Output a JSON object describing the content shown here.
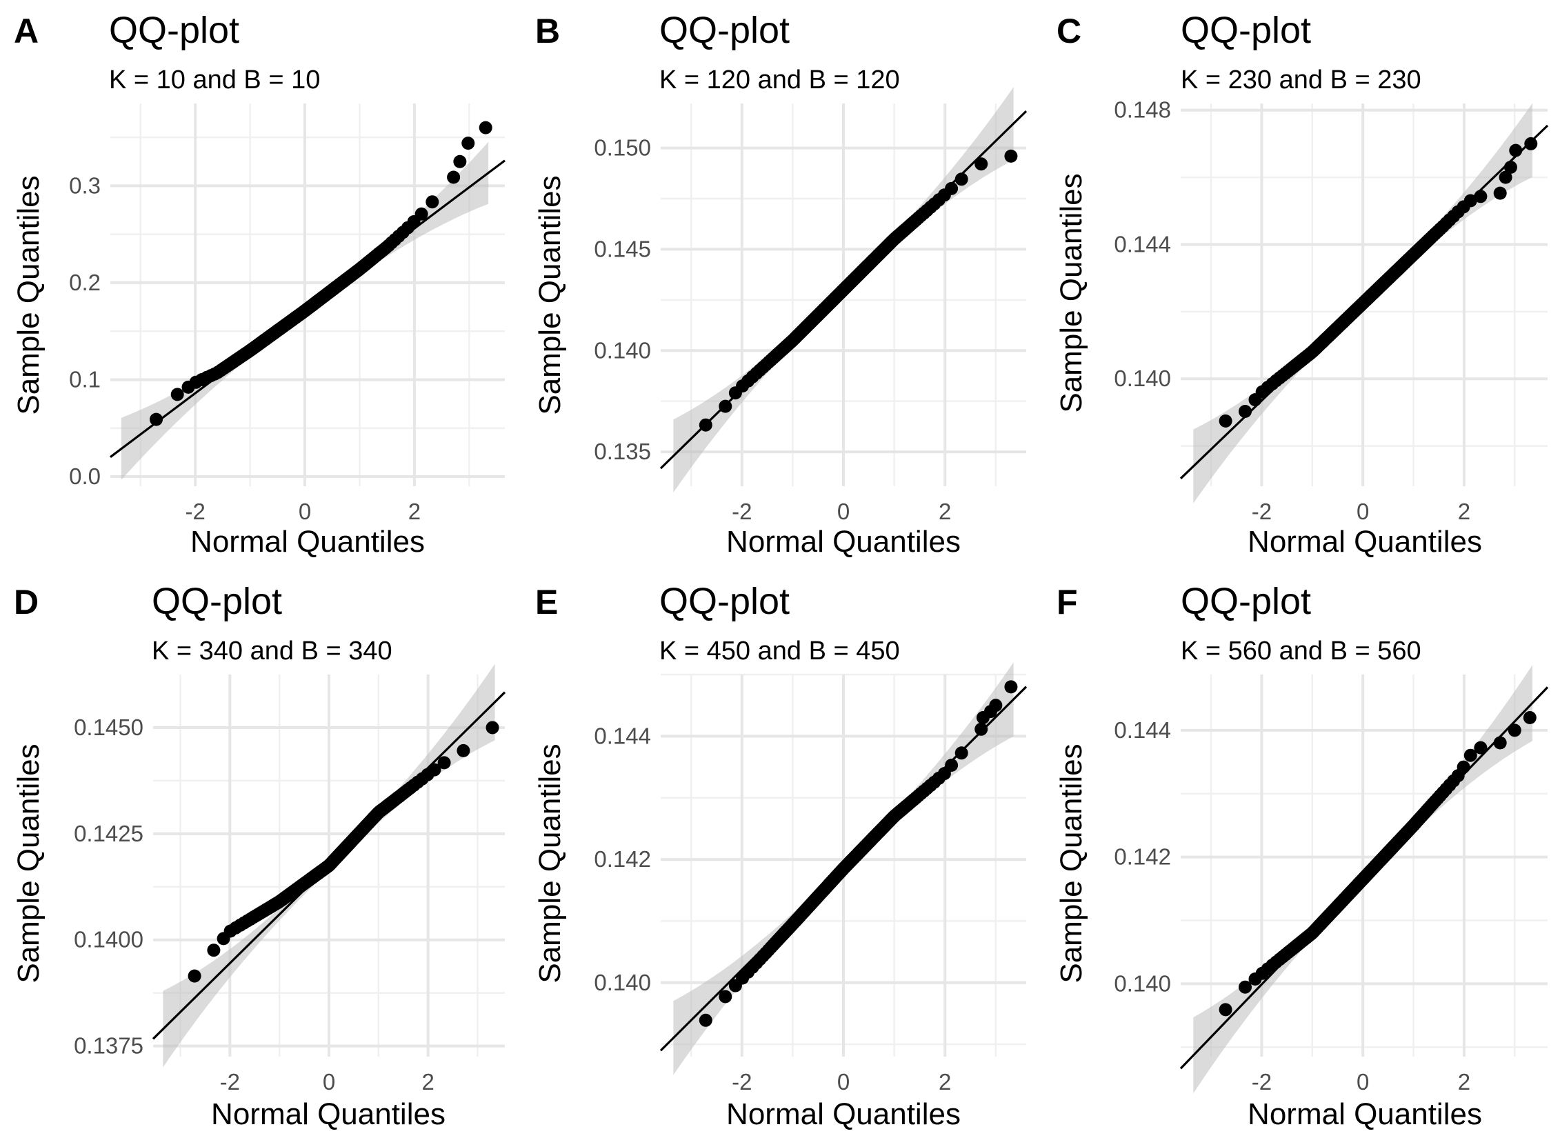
{
  "figure": {
    "panels": [
      {
        "letter": "A",
        "title": "QQ-plot",
        "subtitle": "K = 10 and B = 10"
      },
      {
        "letter": "B",
        "title": "QQ-plot",
        "subtitle": "K = 120 and B = 120"
      },
      {
        "letter": "C",
        "title": "QQ-plot",
        "subtitle": "K = 230 and B = 230"
      },
      {
        "letter": "D",
        "title": "QQ-plot",
        "subtitle": "K = 340 and B = 340"
      },
      {
        "letter": "E",
        "title": "QQ-plot",
        "subtitle": "K = 450 and B = 450"
      },
      {
        "letter": "F",
        "title": "QQ-plot",
        "subtitle": "K = 560 and B = 560"
      }
    ]
  },
  "chart_data": [
    {
      "type": "scatter",
      "panel": "A",
      "title": "QQ-plot",
      "subtitle": "K = 10 and B = 10",
      "xlabel": "Normal Quantiles",
      "ylabel": "Sample Quantiles",
      "xlim": [
        -3.55,
        3.65
      ],
      "ylim": [
        -0.01,
        0.385
      ],
      "xticks": [
        -2,
        0,
        2
      ],
      "xtick_labels": [
        "-2",
        "0",
        "2"
      ],
      "yticks": [
        0.0,
        0.1,
        0.2,
        0.3
      ],
      "ytick_labels": [
        "0.0",
        "0.1",
        "0.2",
        "0.3"
      ],
      "ref_line": {
        "intercept": 0.171,
        "slope": 0.0425
      },
      "band_width": {
        "center": 0.0035,
        "tail": 0.032
      },
      "knots": [
        [
          -3.3,
          0.038
        ],
        [
          -2.9,
          0.044
        ],
        [
          -2.6,
          0.068
        ],
        [
          -2.4,
          0.082
        ],
        [
          -2.0,
          0.097
        ],
        [
          -1.6,
          0.107
        ],
        [
          -1.0,
          0.13
        ],
        [
          0.0,
          0.171
        ],
        [
          1.0,
          0.214
        ],
        [
          1.5,
          0.237
        ],
        [
          1.85,
          0.255
        ],
        [
          2.2,
          0.275
        ],
        [
          2.5,
          0.295
        ],
        [
          2.7,
          0.308
        ]
      ],
      "outliers": [
        [
          2.83,
          0.325
        ],
        [
          2.98,
          0.344
        ],
        [
          3.3,
          0.36
        ]
      ],
      "n_points": 150
    },
    {
      "type": "scatter",
      "panel": "B",
      "title": "QQ-plot",
      "subtitle": "K = 120 and B = 120",
      "xlabel": "Normal Quantiles",
      "ylabel": "Sample Quantiles",
      "xlim": [
        -3.6,
        3.6
      ],
      "ylim": [
        0.1333,
        0.1522
      ],
      "xticks": [
        -2,
        0,
        2
      ],
      "xtick_labels": [
        "-2",
        "0",
        "2"
      ],
      "yticks": [
        0.135,
        0.14,
        0.145,
        0.15
      ],
      "ytick_labels": [
        "0.135",
        "0.140",
        "0.145",
        "0.150"
      ],
      "ref_line": {
        "intercept": 0.143,
        "slope": 0.00245
      },
      "band_width": {
        "center": 0.0002,
        "tail": 0.0018
      },
      "knots": [
        [
          -3.3,
          0.1342
        ],
        [
          -3.05,
          0.1361
        ],
        [
          -2.6,
          0.1364
        ],
        [
          -2.4,
          0.137
        ],
        [
          -2.1,
          0.138
        ],
        [
          -1.0,
          0.1405
        ],
        [
          0.0,
          0.143
        ],
        [
          1.0,
          0.1455
        ],
        [
          2.0,
          0.1477
        ],
        [
          2.6,
          0.1491
        ],
        [
          3.0,
          0.1495
        ]
      ],
      "outliers": [
        [
          3.3,
          0.1496
        ]
      ],
      "n_points": 150
    },
    {
      "type": "scatter",
      "panel": "C",
      "title": "QQ-plot",
      "subtitle": "K = 230 and B = 230",
      "xlabel": "Normal Quantiles",
      "ylabel": "Sample Quantiles",
      "xlim": [
        -3.6,
        3.65
      ],
      "ylim": [
        0.1368,
        0.1482
      ],
      "xticks": [
        -2,
        0,
        2
      ],
      "xtick_labels": [
        "-2",
        "0",
        "2"
      ],
      "yticks": [
        0.14,
        0.144,
        0.148
      ],
      "ytick_labels": [
        "0.140",
        "0.144",
        "0.148"
      ],
      "ref_line": {
        "intercept": 0.14225,
        "slope": 0.00145
      },
      "band_width": {
        "center": 0.00012,
        "tail": 0.0011
      },
      "knots": [
        [
          -3.3,
          0.1378
        ],
        [
          -3.0,
          0.1381
        ],
        [
          -2.8,
          0.1387
        ],
        [
          -2.4,
          0.1389
        ],
        [
          -2.0,
          0.1396
        ],
        [
          -1.0,
          0.1408
        ],
        [
          0.0,
          0.14225
        ],
        [
          1.0,
          0.1437
        ],
        [
          1.9,
          0.145
        ],
        [
          2.2,
          0.1454
        ],
        [
          2.6,
          0.1455
        ]
      ],
      "outliers": [
        [
          2.82,
          0.146
        ],
        [
          2.92,
          0.1463
        ],
        [
          3.02,
          0.1468
        ],
        [
          3.32,
          0.147
        ]
      ],
      "n_points": 150
    },
    {
      "type": "scatter",
      "panel": "D",
      "title": "QQ-plot",
      "subtitle": "K = 340 and B = 340",
      "xlabel": "Normal Quantiles",
      "ylabel": "Sample Quantiles",
      "xlim": [
        -3.55,
        3.55
      ],
      "ylim": [
        0.13725,
        0.14625
      ],
      "xticks": [
        -2,
        0,
        2
      ],
      "xtick_labels": [
        "-2",
        "0",
        "2"
      ],
      "yticks": [
        0.1375,
        0.14,
        0.1425,
        0.145
      ],
      "ytick_labels": [
        "0.1375",
        "0.1400",
        "0.1425",
        "0.1450"
      ],
      "ref_line": {
        "intercept": 0.14175,
        "slope": 0.00115
      },
      "band_width": {
        "center": 0.0001,
        "tail": 0.0009
      },
      "knots": [
        [
          -3.3,
          0.1386
        ],
        [
          -2.9,
          0.1389
        ],
        [
          -2.6,
          0.1393
        ],
        [
          -2.3,
          0.1398
        ],
        [
          -2.0,
          0.1402
        ],
        [
          -1.0,
          0.1409
        ],
        [
          0.0,
          0.14175
        ],
        [
          1.0,
          0.143
        ],
        [
          2.0,
          0.1439
        ],
        [
          2.6,
          0.1444
        ],
        [
          3.0,
          0.1446
        ]
      ],
      "outliers": [
        [
          3.3,
          0.145
        ]
      ],
      "n_points": 150
    },
    {
      "type": "scatter",
      "panel": "E",
      "title": "QQ-plot",
      "subtitle": "K = 450 and B = 450",
      "xlabel": "Normal Quantiles",
      "ylabel": "Sample Quantiles",
      "xlim": [
        -3.6,
        3.6
      ],
      "ylim": [
        0.1388,
        0.145
      ],
      "xticks": [
        -2,
        0,
        2
      ],
      "xtick_labels": [
        "-2",
        "0",
        "2"
      ],
      "yticks": [
        0.14,
        0.142,
        0.144
      ],
      "ytick_labels": [
        "0.140",
        "0.142",
        "0.144"
      ],
      "ref_line": {
        "intercept": 0.14185,
        "slope": 0.00082
      },
      "band_width": {
        "center": 7e-05,
        "tail": 0.0006
      },
      "knots": [
        [
          -3.3,
          0.1391
        ],
        [
          -2.95,
          0.1392
        ],
        [
          -2.7,
          0.1394
        ],
        [
          -2.3,
          0.1398
        ],
        [
          -1.0,
          0.14095
        ],
        [
          0.0,
          0.14185
        ],
        [
          1.0,
          0.1427
        ],
        [
          2.0,
          0.1434
        ],
        [
          2.5,
          0.1439
        ]
      ],
      "outliers": [
        [
          2.75,
          0.1443
        ],
        [
          2.9,
          0.1444
        ],
        [
          3.0,
          0.1445
        ],
        [
          3.3,
          0.1448
        ]
      ],
      "n_points": 150
    },
    {
      "type": "scatter",
      "panel": "F",
      "title": "QQ-plot",
      "subtitle": "K = 560 and B = 560",
      "xlabel": "Normal Quantiles",
      "ylabel": "Sample Quantiles",
      "xlim": [
        -3.6,
        3.65
      ],
      "ylim": [
        0.13885,
        0.14488
      ],
      "xticks": [
        -2,
        0,
        2
      ],
      "xtick_labels": [
        "-2",
        "0",
        "2"
      ],
      "yticks": [
        0.14,
        0.142,
        0.144
      ],
      "ytick_labels": [
        "0.140",
        "0.142",
        "0.144"
      ],
      "ref_line": {
        "intercept": 0.14165,
        "slope": 0.00083
      },
      "band_width": {
        "center": 7e-05,
        "tail": 0.0006
      },
      "knots": [
        [
          -3.3,
          0.1393
        ],
        [
          -3.0,
          0.1394
        ],
        [
          -2.7,
          0.1396
        ],
        [
          -2.4,
          0.1399
        ],
        [
          -1.0,
          0.1408
        ],
        [
          0.0,
          0.14165
        ],
        [
          1.0,
          0.1425
        ],
        [
          1.9,
          0.1433
        ],
        [
          2.2,
          0.1437
        ],
        [
          2.7,
          0.1438
        ]
      ],
      "outliers": [
        [
          3.0,
          0.144
        ],
        [
          3.3,
          0.1442
        ]
      ],
      "n_points": 150
    }
  ]
}
